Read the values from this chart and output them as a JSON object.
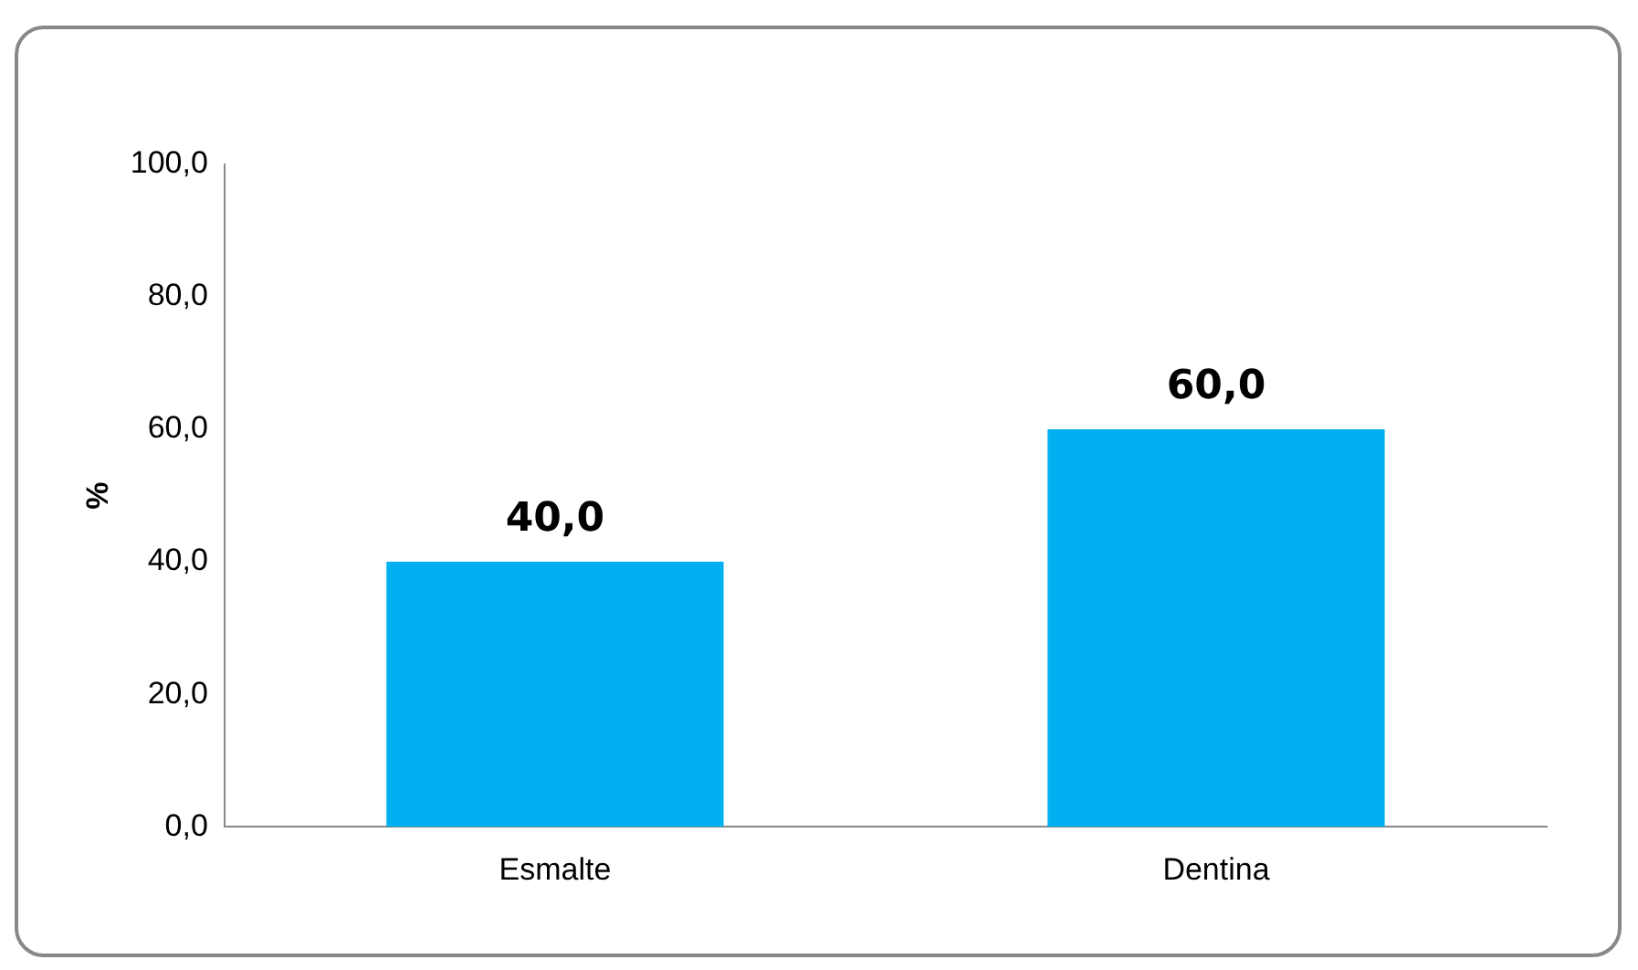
{
  "chart_data": {
    "type": "bar",
    "ylabel": "%",
    "categories": [
      "Esmalte",
      "Dentina"
    ],
    "values": [
      40,
      60
    ],
    "color": "#00b0f0",
    "value_labels": [
      "40,0",
      "60,0"
    ],
    "ylim": [
      0,
      100
    ],
    "yticks": [
      {
        "value": 0,
        "label": "0,0"
      },
      {
        "value": 20,
        "label": "20,0"
      },
      {
        "value": 40,
        "label": "40,0"
      },
      {
        "value": 60,
        "label": "60,0"
      },
      {
        "value": 80,
        "label": "80,0"
      },
      {
        "value": 100,
        "label": "100,0"
      }
    ],
    "grid": false,
    "legend": false
  }
}
